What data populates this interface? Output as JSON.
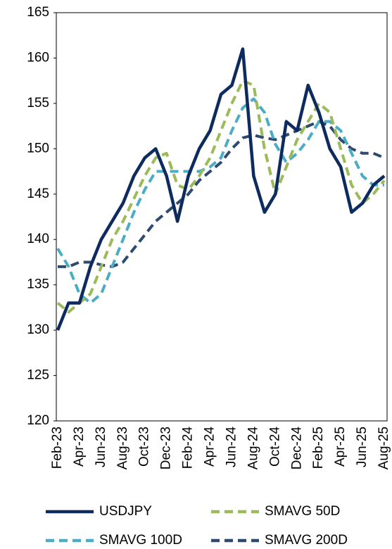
{
  "chart_data": {
    "type": "line",
    "categories": [
      "Feb-23",
      null,
      "Apr-23",
      null,
      "Jun-23",
      null,
      "Aug-23",
      null,
      "Oct-23",
      null,
      "Dec-23",
      null,
      "Feb-24",
      null,
      "Apr-24",
      null,
      "Jun-24",
      null,
      "Aug-24",
      null,
      "Oct-24",
      null,
      "Dec-24",
      null,
      "Feb-25",
      null,
      "Apr-25",
      null,
      "Jun-25",
      null,
      "Aug-25"
    ],
    "series": [
      {
        "name": "USDJPY",
        "color": "#0d2b5e",
        "dash": false,
        "values": [
          130,
          133,
          133,
          137,
          140,
          142,
          144,
          147,
          149,
          150,
          147,
          142,
          147,
          150,
          152,
          156,
          157,
          161,
          147,
          143,
          145,
          153,
          152,
          157,
          154,
          150,
          148,
          143,
          144,
          146,
          147
        ]
      },
      {
        "name": "SMAVG 50D",
        "color": "#9bbb59",
        "dash": true,
        "values": [
          133,
          132,
          133,
          134,
          137,
          140,
          142,
          144.5,
          147,
          149,
          149.5,
          146,
          145.5,
          147,
          149,
          152,
          155,
          157.5,
          157,
          150,
          145,
          148,
          151,
          153,
          155,
          154,
          150,
          146,
          144,
          145,
          146.5
        ]
      },
      {
        "name": "SMAVG 100D",
        "color": "#4bacc6",
        "dash": true,
        "values": [
          139,
          137,
          134,
          133,
          134,
          137,
          140,
          143,
          145.5,
          147.5,
          147.5,
          147.5,
          147.5,
          147.5,
          148,
          149,
          152,
          154.5,
          155.5,
          154,
          150.5,
          148.5,
          149.5,
          151,
          153,
          153,
          152,
          149.5,
          147,
          146,
          146
        ]
      },
      {
        "name": "SMAVG 200D",
        "color": "#2e4a70",
        "dash": true,
        "values": [
          137,
          137,
          137.5,
          137.5,
          137.2,
          137,
          137.5,
          139,
          140.5,
          142,
          143,
          144,
          145,
          146.5,
          147.5,
          148.5,
          150,
          151.2,
          151.5,
          151.2,
          151,
          151.5,
          152,
          152.5,
          153,
          152.5,
          151,
          150,
          149.5,
          149.5,
          149
        ]
      }
    ],
    "ylim": [
      120,
      165
    ],
    "yticks": [
      120,
      125,
      130,
      135,
      140,
      145,
      150,
      155,
      160,
      165
    ],
    "grid": false,
    "legend": "bottom"
  }
}
